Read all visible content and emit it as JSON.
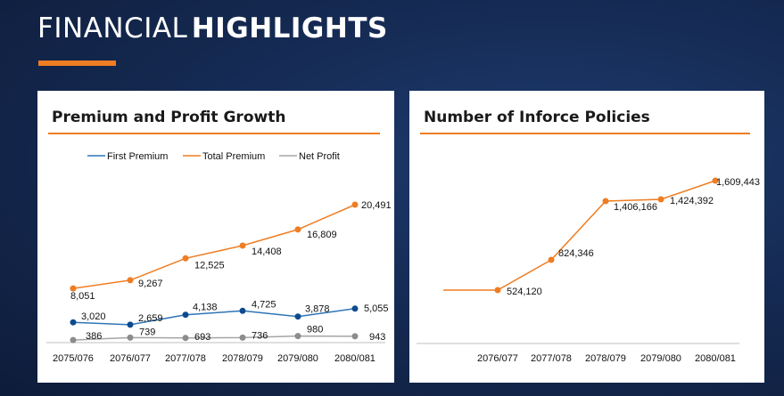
{
  "header": {
    "title_light": "FINANCIAL",
    "title_bold": "HIGHLIGHTS"
  },
  "colors": {
    "accent": "#ef7d22",
    "first_premium": "#2e75b6",
    "first_premium_marker": "#0d4a8f",
    "total_premium": "#ef7d22",
    "net_profit": "#a5a5a5",
    "net_profit_marker": "#8c8c8c"
  },
  "chart_data": [
    {
      "type": "line",
      "title": "Premium and Profit Growth",
      "categories": [
        "2075/076",
        "2076/077",
        "2077/078",
        "2078/079",
        "2079/080",
        "2080/081"
      ],
      "legend_position": "top-center",
      "grid": false,
      "series": [
        {
          "name": "First Premium",
          "values": [
            3020,
            2659,
            4138,
            4725,
            3878,
            5055
          ],
          "labels": [
            "3,020",
            "2,659",
            "4,138",
            "4,725",
            "3,878",
            "5,055"
          ]
        },
        {
          "name": "Total Premium",
          "values": [
            8051,
            9267,
            12525,
            14408,
            16809,
            20491
          ],
          "labels": [
            "8,051",
            "9,267",
            "12,525",
            "14,408",
            "16,809",
            "20,491"
          ]
        },
        {
          "name": "Net Profit",
          "values": [
            386,
            739,
            693,
            736,
            980,
            943
          ],
          "labels": [
            "386",
            "739",
            "693",
            "736",
            "980",
            "943"
          ]
        }
      ]
    },
    {
      "type": "line",
      "title": "Number of Inforce Policies",
      "categories": [
        "2076/077",
        "2077/078",
        "2078/079",
        "2079/080",
        "2080/081"
      ],
      "legend_position": "none",
      "grid": false,
      "series": [
        {
          "values": [
            524120,
            824346,
            1406166,
            1424392,
            1609443
          ],
          "labels": [
            "524,120",
            "824,346",
            "1,406,166",
            "1,424,392",
            "1,609,443"
          ]
        }
      ]
    }
  ]
}
